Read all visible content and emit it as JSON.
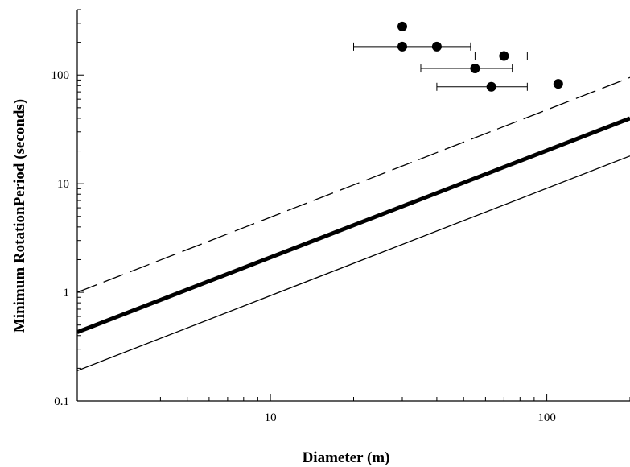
{
  "chart_data": {
    "type": "scatter",
    "title": "",
    "xlabel": "Diameter (m)",
    "ylabel": "Minimum RotationPeriod (seconds)",
    "xscale": "log",
    "yscale": "log",
    "xlim": [
      2,
      200
    ],
    "ylim": [
      0.1,
      400
    ],
    "grid": false,
    "x_major_ticks": [
      10,
      100
    ],
    "x_tick_labels": [
      "10",
      "100"
    ],
    "y_major_ticks": [
      0.1,
      1,
      10,
      100
    ],
    "y_tick_labels": [
      "0.1",
      "1",
      "10",
      "100"
    ],
    "lines": [
      {
        "style": "dashed",
        "width": "thin",
        "x": [
          2,
          200
        ],
        "y": [
          1.0,
          95
        ]
      },
      {
        "style": "solid",
        "width": "thick",
        "x": [
          2,
          200
        ],
        "y": [
          0.43,
          40
        ]
      },
      {
        "style": "solid",
        "width": "thin",
        "x": [
          2,
          200
        ],
        "y": [
          0.19,
          18
        ]
      }
    ],
    "points": [
      {
        "x": 30,
        "y": 280
      },
      {
        "x": 30,
        "y": 183,
        "x_err": [
          20,
          30
        ]
      },
      {
        "x": 40,
        "y": 183,
        "x_err": [
          30,
          53
        ]
      },
      {
        "x": 70,
        "y": 150,
        "x_err": [
          55,
          85
        ]
      },
      {
        "x": 55,
        "y": 115,
        "x_err": [
          35,
          75
        ]
      },
      {
        "x": 63,
        "y": 78,
        "x_err": [
          40,
          85
        ]
      },
      {
        "x": 110,
        "y": 83
      }
    ]
  }
}
